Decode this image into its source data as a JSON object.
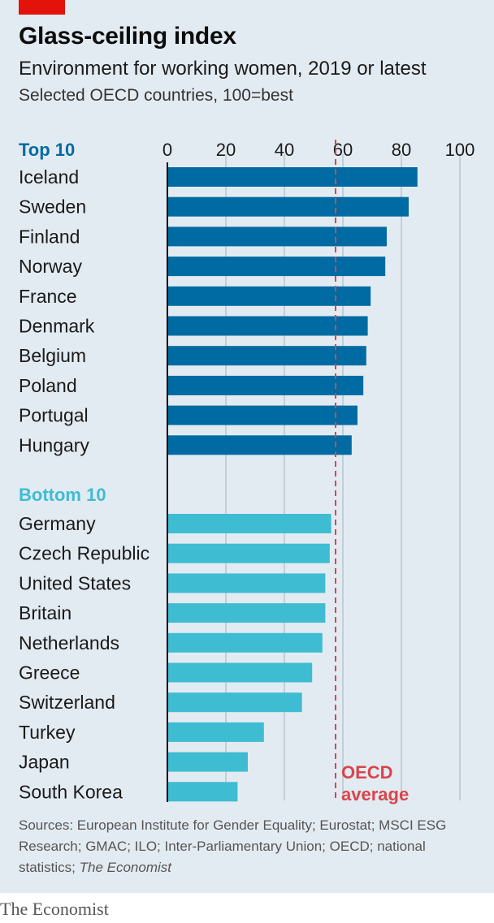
{
  "header": {
    "title": "Glass-ceiling index",
    "subtitle": "Environment for working women, 2019 or latest",
    "note": "Selected OECD countries, 100=best"
  },
  "chart_data": {
    "type": "bar",
    "orientation": "horizontal",
    "xlim": [
      0,
      100
    ],
    "x_ticks": [
      "0",
      "20",
      "40",
      "60",
      "80",
      "100"
    ],
    "groups": [
      {
        "name": "Top 10",
        "color": "#006ba2",
        "categories": [
          "Iceland",
          "Sweden",
          "Finland",
          "Norway",
          "France",
          "Denmark",
          "Belgium",
          "Poland",
          "Portugal",
          "Hungary"
        ],
        "values": [
          85.5,
          82.5,
          75,
          74.5,
          69.5,
          68.5,
          68,
          67,
          65,
          63
        ]
      },
      {
        "name": "Bottom 10",
        "color": "#3ebcd2",
        "categories": [
          "Germany",
          "Czech Republic",
          "United States",
          "Britain",
          "Netherlands",
          "Greece",
          "Switzerland",
          "Turkey",
          "Japan",
          "South Korea"
        ],
        "values": [
          56,
          55.5,
          54,
          54,
          53,
          49.5,
          46,
          33,
          27.5,
          24
        ]
      }
    ],
    "reference_line": {
      "value": 57.5,
      "label_line1": "OECD",
      "label_line2": "average",
      "color": "#db444b"
    }
  },
  "source": {
    "text": "Sources: European Institute for Gender Equality; Eurostat; MSCI ESG Research; GMAC; ILO; Inter-Parliamentary Union; OECD; national statistics; ",
    "italic": "The Economist"
  },
  "footer": {
    "brand": "The Economist"
  }
}
